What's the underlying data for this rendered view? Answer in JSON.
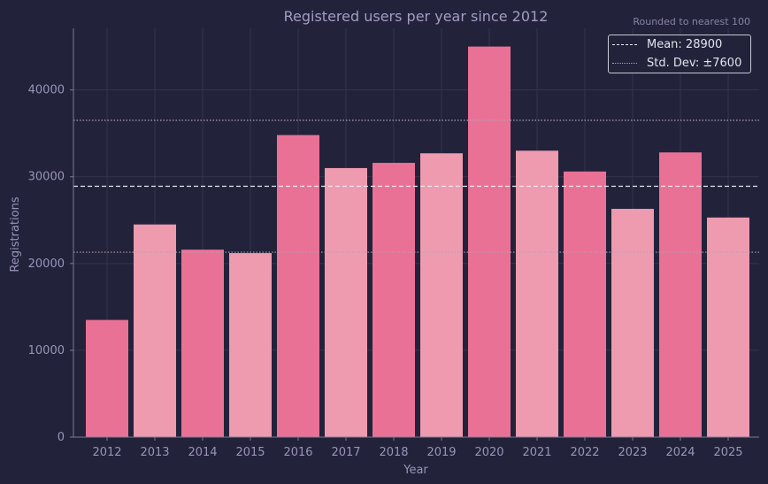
{
  "chart_data": {
    "type": "bar",
    "title": "Registered users per year since 2012",
    "note": "Rounded to nearest 100",
    "xlabel": "Year",
    "ylabel": "Registrations",
    "ylim": [
      0,
      47100
    ],
    "yticks": [
      0,
      10000,
      20000,
      30000,
      40000
    ],
    "categories": [
      "2012",
      "2013",
      "2014",
      "2015",
      "2016",
      "2017",
      "2018",
      "2019",
      "2020",
      "2021",
      "2022",
      "2023",
      "2024",
      "2025"
    ],
    "values": [
      13500,
      24500,
      21600,
      21200,
      34800,
      31000,
      31600,
      32700,
      45000,
      33000,
      30600,
      26300,
      32800,
      25300
    ],
    "mean": 28900,
    "std": 7600,
    "grid": true,
    "legend": {
      "placement": "top-right",
      "mean_label": "Mean: 28900",
      "std_label": "Std. Dev: ±7600"
    },
    "colors": {
      "background": "#22223a",
      "bar_primary": "#ea7196",
      "bar_alt": "#ee9aaf",
      "grid": "#34344c",
      "axis": "#7a7a96",
      "tick_text": "#9a94b8",
      "mean_line": "#e8e8f0",
      "std_line": "#b0a0b0"
    }
  }
}
